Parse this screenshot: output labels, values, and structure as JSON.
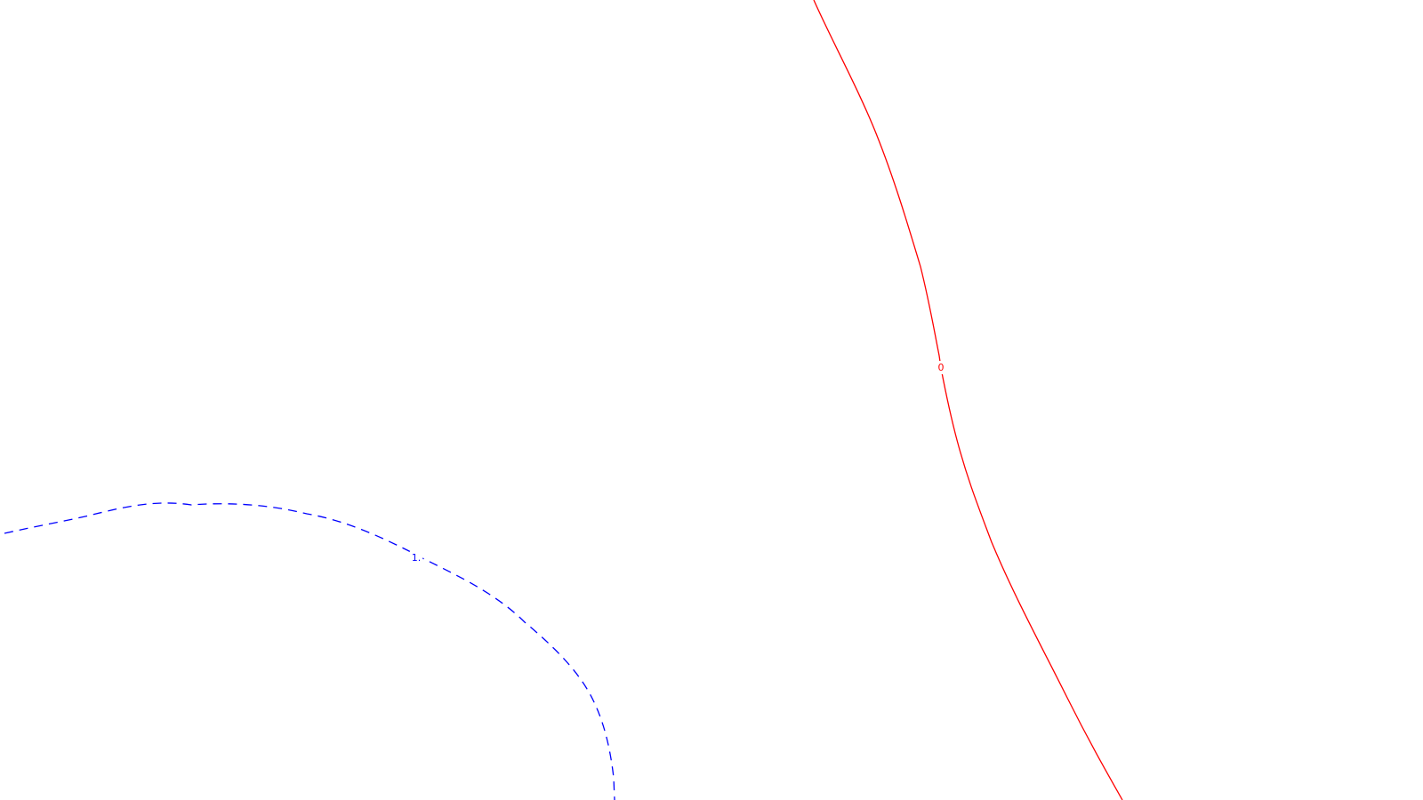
{
  "contours": [
    {
      "label": "0",
      "color": "#ff0000",
      "style": "solid"
    },
    {
      "label": "1.",
      "color": "#0000ff",
      "style": "dashed"
    }
  ]
}
